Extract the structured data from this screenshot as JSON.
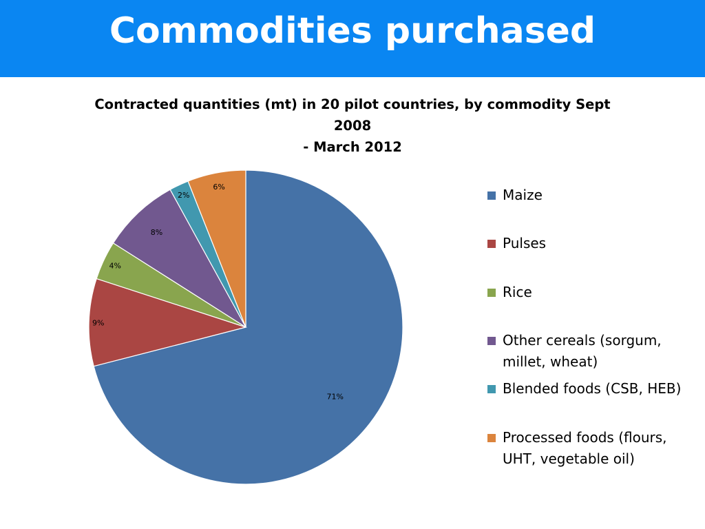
{
  "slide": {
    "title": "Commodities purchased"
  },
  "colors": {
    "banner": "#0a86f2"
  },
  "chart_data": {
    "type": "pie",
    "title": "Contracted quantities (mt) in 20 pilot countries, by commodity Sept 2008",
    "title_line2": "- March 2012",
    "legend_position": "right",
    "slices": [
      {
        "name": "Maize",
        "value": 71,
        "label": "71%",
        "color": "#4572a7"
      },
      {
        "name": "Pulses",
        "value": 9,
        "label": "9%",
        "color": "#aa4643"
      },
      {
        "name": "Rice",
        "value": 4,
        "label": "4%",
        "color": "#89a54e"
      },
      {
        "name": "Other cereals (sorgum, millet, wheat)",
        "value": 8,
        "label": "8%",
        "color": "#71588f"
      },
      {
        "name": "Blended foods (CSB, HEB)",
        "value": 2,
        "label": "2%",
        "color": "#4198af"
      },
      {
        "name": "Processed foods (flours, UHT, vegetable oil)",
        "value": 6,
        "label": "6%",
        "color": "#db843d"
      }
    ]
  }
}
